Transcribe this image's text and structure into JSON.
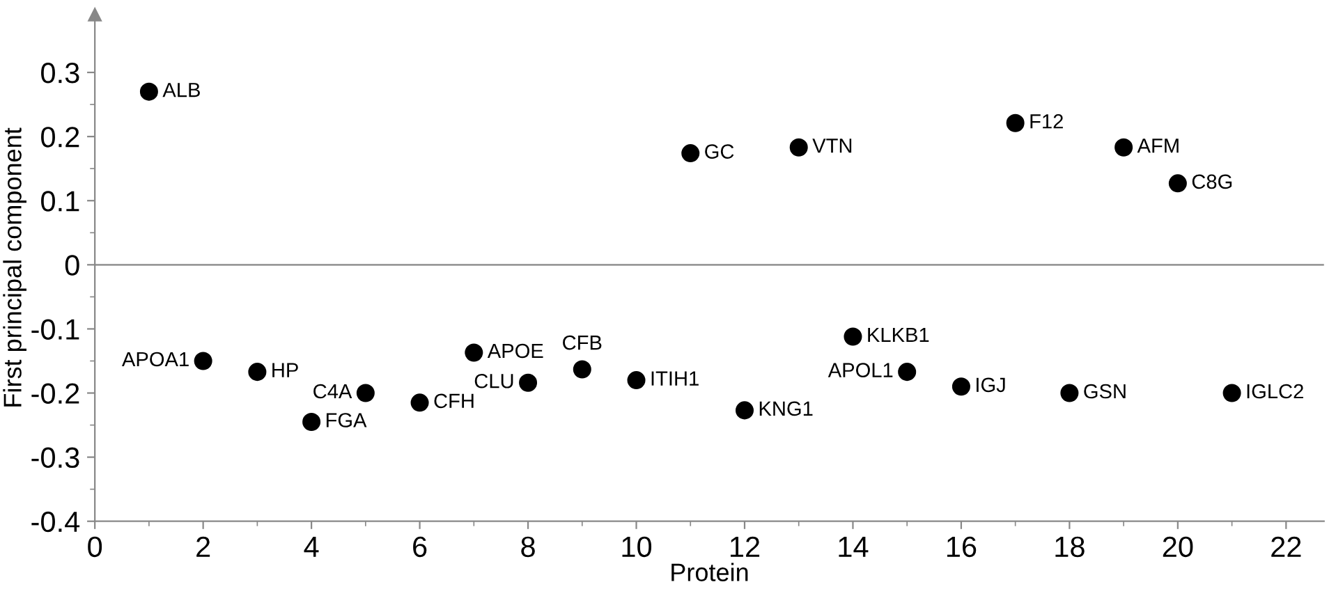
{
  "chart_data": {
    "type": "scatter",
    "xlabel": "Protein",
    "ylabel": "First principal component",
    "x": [
      1,
      2,
      3,
      4,
      5,
      6,
      7,
      8,
      9,
      10,
      11,
      12,
      13,
      14,
      15,
      16,
      17,
      18,
      19,
      20,
      21
    ],
    "series": [
      {
        "color": "#000000",
        "values": [
          0.27,
          -0.15,
          -0.167,
          -0.245,
          -0.2,
          -0.215,
          -0.137,
          -0.184,
          -0.163,
          -0.18,
          0.174,
          -0.227,
          0.183,
          -0.112,
          -0.167,
          -0.19,
          0.221,
          -0.2,
          0.183,
          0.127,
          -0.2
        ]
      }
    ],
    "annotations": [
      {
        "text": "ALB",
        "x": 1,
        "y": 0.27
      },
      {
        "text": "APOA1",
        "x": 2,
        "y": -0.15
      },
      {
        "text": "HP",
        "x": 3,
        "y": -0.167
      },
      {
        "text": "FGA",
        "x": 4,
        "y": -0.245
      },
      {
        "text": "C4A",
        "x": 5,
        "y": -0.2
      },
      {
        "text": "CFH",
        "x": 6,
        "y": -0.215
      },
      {
        "text": "APOE",
        "x": 7,
        "y": -0.137
      },
      {
        "text": "CLU",
        "x": 8,
        "y": -0.184
      },
      {
        "text": "CFB",
        "x": 9,
        "y": -0.163
      },
      {
        "text": "ITIH1",
        "x": 10,
        "y": -0.18
      },
      {
        "text": "GC",
        "x": 11,
        "y": 0.174
      },
      {
        "text": "KNG1",
        "x": 12,
        "y": -0.227
      },
      {
        "text": "VTN",
        "x": 13,
        "y": 0.183
      },
      {
        "text": "KLKB1",
        "x": 14,
        "y": -0.112
      },
      {
        "text": "APOL1",
        "x": 15,
        "y": -0.167
      },
      {
        "text": "IGJ",
        "x": 16,
        "y": -0.19
      },
      {
        "text": "F12",
        "x": 17,
        "y": 0.221
      },
      {
        "text": "GSN",
        "x": 18,
        "y": -0.2
      },
      {
        "text": "AFM",
        "x": 19,
        "y": 0.183
      },
      {
        "text": "C8G",
        "x": 20,
        "y": 0.127
      },
      {
        "text": "IGLC2",
        "x": 21,
        "y": -0.2
      }
    ],
    "ref_lines": [
      {
        "axis": "y",
        "value": 0,
        "color": "#999999"
      }
    ],
    "xlim": [
      0,
      22.7
    ],
    "ylim": [
      -0.4,
      0.39
    ],
    "xticks": [
      0,
      2,
      4,
      6,
      8,
      10,
      12,
      14,
      16,
      18,
      20,
      22
    ],
    "yticks": [
      -0.4,
      -0.3,
      -0.2,
      -0.1,
      0,
      0.1,
      0.2,
      0.3
    ],
    "marker": "circle",
    "grid": false,
    "legend": false
  }
}
